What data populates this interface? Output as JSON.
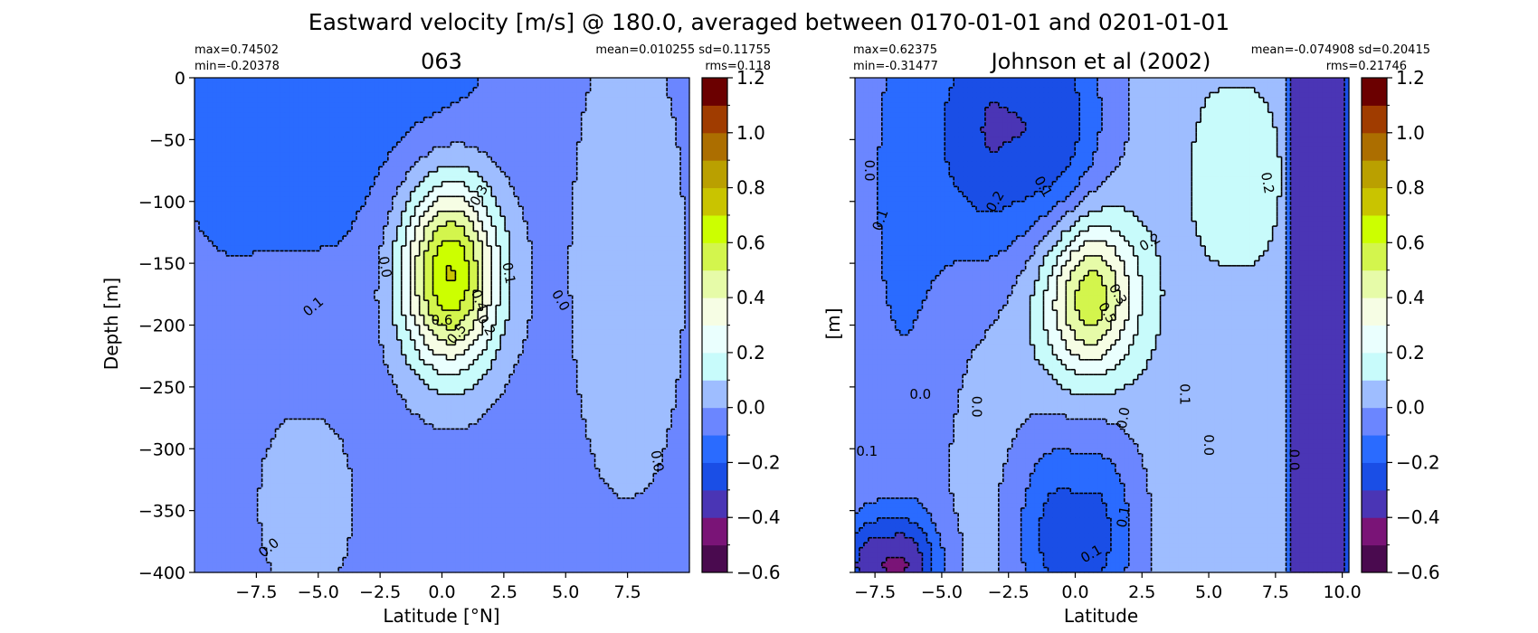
{
  "figure": {
    "suptitle": "Eastward velocity [m/s] @ 180.0, averaged between 0170-01-01 and 0201-01-01"
  },
  "colorbar": {
    "levels": [
      -0.6,
      -0.5,
      -0.4,
      -0.3,
      -0.2,
      -0.1,
      0.0,
      0.1,
      0.2,
      0.3,
      0.4,
      0.5,
      0.6,
      0.7,
      0.8,
      0.9,
      1.0,
      1.1,
      1.2
    ],
    "colors": [
      "#4a0a4f",
      "#7a1477",
      "#4a35b5",
      "#1a4ee6",
      "#2a6bff",
      "#6b86ff",
      "#9ebdff",
      "#c8fbfb",
      "#eafffe",
      "#f6fde4",
      "#e6fba8",
      "#d3f54d",
      "#ccff00",
      "#c9c400",
      "#baa000",
      "#ac6e00",
      "#a03c00",
      "#6b0000"
    ],
    "tick_values": [
      -0.6,
      -0.4,
      -0.2,
      0.0,
      0.2,
      0.4,
      0.6,
      0.8,
      1.0,
      1.2
    ],
    "tick_labels": [
      "−0.6",
      "−0.4",
      "−0.2",
      "0.0",
      "0.2",
      "0.4",
      "0.6",
      "0.8",
      "1.0",
      "1.2"
    ]
  },
  "chart_data": [
    {
      "type": "heatmap",
      "subtype": "filled-contour",
      "title": "063",
      "stats": {
        "max": "max=0.74502",
        "min": "min=-0.20378",
        "mean_sd": "mean=0.010255 sd=0.11755",
        "rms": "rms=0.118"
      },
      "xlabel": "Latitude [°N]",
      "ylabel": "Depth [m]",
      "xlim": [
        -10,
        10
      ],
      "ylim": [
        -400,
        0
      ],
      "x_ticks": [
        -7.5,
        -5.0,
        -2.5,
        0.0,
        2.5,
        5.0,
        7.5
      ],
      "x_tick_labels": [
        "−7.5",
        "−5.0",
        "−2.5",
        "0.0",
        "2.5",
        "5.0",
        "7.5"
      ],
      "y_ticks": [
        0,
        -50,
        -100,
        -150,
        -200,
        -250,
        -300,
        -350,
        -400
      ],
      "y_tick_labels": [
        "0",
        "−50",
        "−100",
        "−150",
        "−200",
        "−250",
        "−300",
        "−350",
        "−400"
      ],
      "background_value": -0.05,
      "features": [
        {
          "value": -0.15,
          "lat": -4.5,
          "depth": -5,
          "lat_halfwidth": 6.0,
          "depth_sigma": 120,
          "lat_sigma": 2.2
        },
        {
          "value": 0.745,
          "lat": 0.3,
          "depth": -158,
          "lat_halfwidth": 1.4,
          "depth_sigma": 55,
          "lat_sigma": 1.4
        },
        {
          "value": 0.05,
          "lat": 7.5,
          "depth": -150,
          "lat_halfwidth": 2.0,
          "depth_sigma": 160,
          "lat_sigma": 1.8
        },
        {
          "value": 0.03,
          "lat": -5.5,
          "depth": -340,
          "lat_halfwidth": 2.0,
          "depth_sigma": 80,
          "lat_sigma": 1.6
        }
      ],
      "contour_labels": [
        {
          "text": "0.3",
          "lat": 1.5,
          "depth": -95,
          "angle": 60
        },
        {
          "text": "0.0",
          "lat": -2.3,
          "depth": -153,
          "angle": -80
        },
        {
          "text": "0.1",
          "lat": 2.7,
          "depth": -158,
          "angle": -80
        },
        {
          "text": "0.4",
          "lat": 1.5,
          "depth": -180,
          "angle": -70
        },
        {
          "text": "0.6",
          "lat": 0.0,
          "depth": -196,
          "angle": 0
        },
        {
          "text": "0.5",
          "lat": 0.6,
          "depth": -207,
          "angle": 50
        },
        {
          "text": "0.2",
          "lat": 1.8,
          "depth": -200,
          "angle": -60
        },
        {
          "text": "0.1",
          "lat": -5.2,
          "depth": -185,
          "angle": 40
        },
        {
          "text": "0.0",
          "lat": 4.8,
          "depth": -180,
          "angle": -60
        },
        {
          "text": "0.0",
          "lat": 8.7,
          "depth": -310,
          "angle": -80
        },
        {
          "text": "0.0",
          "lat": -7.0,
          "depth": -380,
          "angle": 40
        }
      ]
    },
    {
      "type": "heatmap",
      "subtype": "filled-contour",
      "title": "Johnson et al (2002)",
      "stats": {
        "max": "max=0.62375",
        "min": "min=-0.31477",
        "mean_sd": "mean=-0.074908 sd=0.20415",
        "rms": "rms=0.21746"
      },
      "xlabel": "Latitude",
      "ylabel": "[m]",
      "xlim": [
        -8.25,
        10.25
      ],
      "ylim": [
        -400,
        0
      ],
      "x_ticks": [
        -7.5,
        -5.0,
        -2.5,
        0.0,
        2.5,
        5.0,
        7.5,
        10.0
      ],
      "x_tick_labels": [
        "−7.5",
        "−5.0",
        "−2.5",
        "0.0",
        "2.5",
        "5.0",
        "7.5",
        "10.0"
      ],
      "y_ticks": [
        0,
        -50,
        -100,
        -150,
        -200,
        -250,
        -300,
        -350,
        -400
      ],
      "background_value": 0.05,
      "features": [
        {
          "value": -0.3,
          "lat": -2.0,
          "depth": -40,
          "lat_halfwidth": 2.5,
          "depth_sigma": 80,
          "lat_sigma": 1.6
        },
        {
          "value": 0.62,
          "lat": 0.5,
          "depth": -175,
          "lat_halfwidth": 1.2,
          "depth_sigma": 45,
          "lat_sigma": 1.3
        },
        {
          "value": -0.12,
          "lat": -6.5,
          "depth": -100,
          "lat_halfwidth": 1.5,
          "depth_sigma": 200,
          "lat_sigma": 1.5
        },
        {
          "value": -0.25,
          "lat": 0.0,
          "depth": -370,
          "lat_halfwidth": 1.8,
          "depth_sigma": 60,
          "lat_sigma": 1.2
        },
        {
          "value": -0.35,
          "lat": -7.0,
          "depth": -395,
          "lat_halfwidth": 1.5,
          "depth_sigma": 30,
          "lat_sigma": 1.0
        },
        {
          "value": 0.15,
          "lat": 6.0,
          "depth": -80,
          "lat_halfwidth": 1.5,
          "depth_sigma": 60,
          "lat_sigma": 1.0
        },
        {
          "value": -0.35,
          "lat": 9.1,
          "depth": -200,
          "lat_halfwidth": 1.1,
          "depth_sigma": 1000,
          "lat_sigma": 0.1
        }
      ],
      "contour_labels": [
        {
          "text": "0.0",
          "lat": -7.7,
          "depth": -75,
          "angle": -90
        },
        {
          "text": "0.1",
          "lat": -7.3,
          "depth": -115,
          "angle": 70
        },
        {
          "text": "0.2",
          "lat": -3.0,
          "depth": -100,
          "angle": 60
        },
        {
          "text": "0.1",
          "lat": -1.2,
          "depth": -88,
          "angle": -60
        },
        {
          "text": "0.2",
          "lat": 2.8,
          "depth": -133,
          "angle": 30
        },
        {
          "text": "0.2",
          "lat": 7.2,
          "depth": -85,
          "angle": -80
        },
        {
          "text": "0.3",
          "lat": 1.6,
          "depth": -175,
          "angle": -60
        },
        {
          "text": "0.5",
          "lat": 1.2,
          "depth": -190,
          "angle": -60
        },
        {
          "text": "0.0",
          "lat": -5.8,
          "depth": -256,
          "angle": 0
        },
        {
          "text": "0.0",
          "lat": -3.7,
          "depth": -266,
          "angle": -90
        },
        {
          "text": "0.1",
          "lat": 4.1,
          "depth": -256,
          "angle": -90
        },
        {
          "text": "0.0",
          "lat": 1.8,
          "depth": -275,
          "angle": 80
        },
        {
          "text": "0.0",
          "lat": 5.0,
          "depth": -297,
          "angle": -90
        },
        {
          "text": "0.1",
          "lat": -7.8,
          "depth": -302,
          "angle": 0
        },
        {
          "text": "0.0",
          "lat": 8.2,
          "depth": -309,
          "angle": -90
        },
        {
          "text": "0.1",
          "lat": 1.8,
          "depth": -355,
          "angle": 80
        },
        {
          "text": "0.1",
          "lat": 0.6,
          "depth": -385,
          "angle": 30
        }
      ]
    }
  ]
}
